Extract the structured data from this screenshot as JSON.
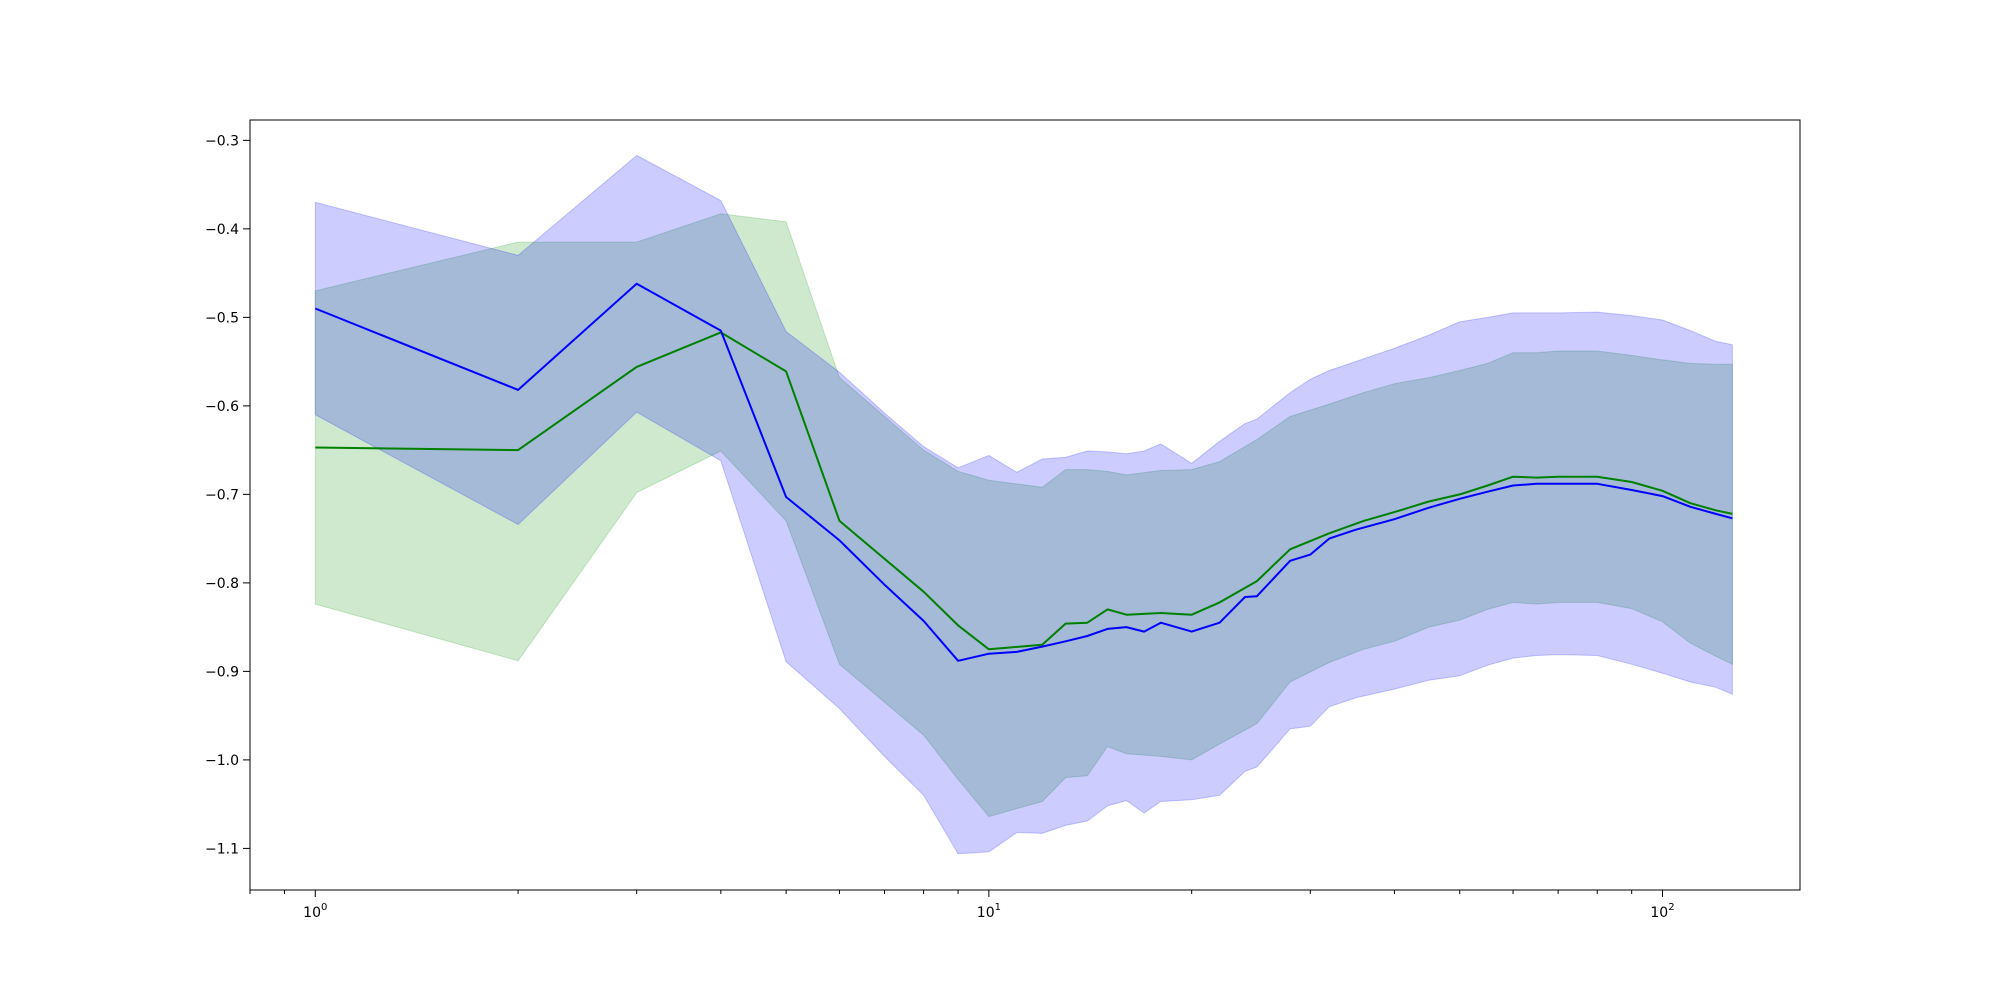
{
  "chart_data": {
    "type": "line",
    "title": "",
    "xlabel": "",
    "ylabel": "",
    "xscale": "log",
    "xlim": [
      0.8,
      160
    ],
    "ylim": [
      -1.147,
      -0.277
    ],
    "grid": false,
    "legend": "none",
    "x_ticks": [
      {
        "value": 1,
        "base": "10",
        "exp": "0"
      },
      {
        "value": 10,
        "base": "10",
        "exp": "1"
      },
      {
        "value": 100,
        "base": "10",
        "exp": "2"
      }
    ],
    "y_ticks": [
      {
        "value": -0.3,
        "label": "−0.3"
      },
      {
        "value": -0.4,
        "label": "−0.4"
      },
      {
        "value": -0.5,
        "label": "−0.5"
      },
      {
        "value": -0.6,
        "label": "−0.6"
      },
      {
        "value": -0.7,
        "label": "−0.7"
      },
      {
        "value": -0.8,
        "label": "−0.8"
      },
      {
        "value": -0.9,
        "label": "−0.9"
      },
      {
        "value": -1.0,
        "label": "−1.0"
      },
      {
        "value": -1.1,
        "label": "−1.1"
      }
    ],
    "series": [
      {
        "color": "#008000",
        "band_color": "#2ca02c",
        "band_opacity": 0.23,
        "points": [
          [
            1,
            -0.647,
            -0.47,
            -0.824
          ],
          [
            2,
            -0.65,
            -0.415,
            -0.888
          ],
          [
            3,
            -0.556,
            -0.415,
            -0.698
          ],
          [
            4,
            -0.517,
            -0.383,
            -0.651
          ],
          [
            5,
            -0.561,
            -0.392,
            -0.73
          ],
          [
            6,
            -0.73,
            -0.568,
            -0.892
          ],
          [
            8,
            -0.81,
            -0.65,
            -0.972
          ],
          [
            9,
            -0.848,
            -0.674,
            -1.022
          ],
          [
            10,
            -0.875,
            -0.684,
            -1.064
          ],
          [
            12,
            -0.87,
            -0.692,
            -1.047
          ],
          [
            13,
            -0.846,
            -0.672,
            -1.02
          ],
          [
            14,
            -0.845,
            -0.672,
            -1.018
          ],
          [
            15,
            -0.83,
            -0.674,
            -0.985
          ],
          [
            16,
            -0.836,
            -0.678,
            -0.993
          ],
          [
            18,
            -0.834,
            -0.673,
            -0.996
          ],
          [
            20,
            -0.836,
            -0.672,
            -1.0
          ],
          [
            22,
            -0.822,
            -0.663,
            -0.982
          ],
          [
            25,
            -0.798,
            -0.638,
            -0.959
          ],
          [
            28,
            -0.762,
            -0.612,
            -0.912
          ],
          [
            32,
            -0.744,
            -0.598,
            -0.89
          ],
          [
            36,
            -0.73,
            -0.585,
            -0.875
          ],
          [
            40,
            -0.72,
            -0.575,
            -0.866
          ],
          [
            45,
            -0.708,
            -0.568,
            -0.85
          ],
          [
            50,
            -0.7,
            -0.56,
            -0.842
          ],
          [
            55,
            -0.69,
            -0.552,
            -0.83
          ],
          [
            60,
            -0.68,
            -0.54,
            -0.822
          ],
          [
            65,
            -0.681,
            -0.54,
            -0.824
          ],
          [
            70,
            -0.68,
            -0.538,
            -0.822
          ],
          [
            80,
            -0.68,
            -0.538,
            -0.822
          ],
          [
            90,
            -0.686,
            -0.543,
            -0.829
          ],
          [
            100,
            -0.696,
            -0.548,
            -0.844
          ],
          [
            110,
            -0.71,
            -0.552,
            -0.868
          ],
          [
            120,
            -0.718,
            -0.553,
            -0.883
          ],
          [
            127,
            -0.722,
            -0.553,
            -0.892
          ]
        ]
      },
      {
        "color": "#0000ff",
        "band_color": "#0000ff",
        "band_opacity": 0.2,
        "points": [
          [
            1,
            -0.49,
            -0.37,
            -0.61
          ],
          [
            2,
            -0.582,
            -0.43,
            -0.734
          ],
          [
            3,
            -0.462,
            -0.317,
            -0.607
          ],
          [
            4,
            -0.515,
            -0.368,
            -0.662
          ],
          [
            5,
            -0.703,
            -0.516,
            -0.889
          ],
          [
            6,
            -0.752,
            -0.562,
            -0.942
          ],
          [
            7,
            -0.802,
            -0.608,
            -0.996
          ],
          [
            8,
            -0.843,
            -0.646,
            -1.04
          ],
          [
            9,
            -0.888,
            -0.67,
            -1.106
          ],
          [
            10,
            -0.88,
            -0.656,
            -1.104
          ],
          [
            11,
            -0.878,
            -0.675,
            -1.082
          ],
          [
            12,
            -0.872,
            -0.66,
            -1.083
          ],
          [
            13,
            -0.866,
            -0.658,
            -1.074
          ],
          [
            14,
            -0.86,
            -0.651,
            -1.069
          ],
          [
            15,
            -0.852,
            -0.652,
            -1.052
          ],
          [
            16,
            -0.85,
            -0.654,
            -1.046
          ],
          [
            17,
            -0.855,
            -0.651,
            -1.06
          ],
          [
            18,
            -0.845,
            -0.643,
            -1.047
          ],
          [
            20,
            -0.855,
            -0.665,
            -1.045
          ],
          [
            22,
            -0.845,
            -0.64,
            -1.04
          ],
          [
            24,
            -0.816,
            -0.62,
            -1.013
          ],
          [
            25,
            -0.815,
            -0.615,
            -1.008
          ],
          [
            28,
            -0.775,
            -0.585,
            -0.965
          ],
          [
            30,
            -0.768,
            -0.57,
            -0.962
          ],
          [
            32,
            -0.75,
            -0.56,
            -0.94
          ],
          [
            35,
            -0.74,
            -0.55,
            -0.93
          ],
          [
            40,
            -0.728,
            -0.535,
            -0.92
          ],
          [
            45,
            -0.715,
            -0.52,
            -0.91
          ],
          [
            50,
            -0.705,
            -0.505,
            -0.905
          ],
          [
            55,
            -0.697,
            -0.5,
            -0.893
          ],
          [
            60,
            -0.69,
            -0.495,
            -0.885
          ],
          [
            65,
            -0.688,
            -0.495,
            -0.882
          ],
          [
            70,
            -0.688,
            -0.495,
            -0.881
          ],
          [
            80,
            -0.688,
            -0.494,
            -0.882
          ],
          [
            90,
            -0.695,
            -0.498,
            -0.892
          ],
          [
            100,
            -0.702,
            -0.503,
            -0.902
          ],
          [
            110,
            -0.714,
            -0.515,
            -0.912
          ],
          [
            120,
            -0.722,
            -0.527,
            -0.918
          ],
          [
            127,
            -0.727,
            -0.531,
            -0.926
          ]
        ]
      }
    ]
  }
}
